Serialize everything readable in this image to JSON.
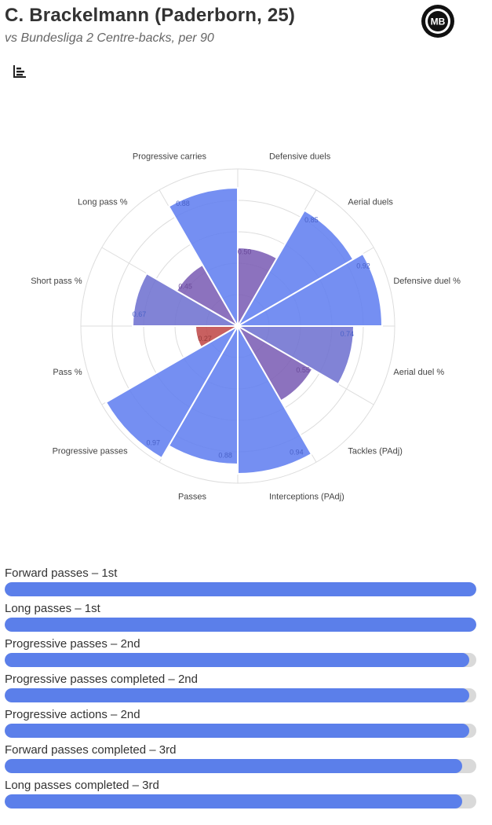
{
  "header": {
    "title": "C. Brackelmann (Paderborn, 25)",
    "subtitle": "vs Bundesliga 2 Centre-backs, per 90",
    "logo_text": "MB"
  },
  "toolbar": {
    "chart_toggle_icon": "bar-chart-icon"
  },
  "colors": {
    "high": "#6280f0",
    "mid": "#7c5fb5",
    "low": "#c04a4a",
    "grid": "#dddddd",
    "bar_fill": "#5b7fea",
    "bar_track": "#d9d9d9"
  },
  "chart_data": [
    {
      "type": "polar-bar",
      "categories": [
        "Defensive duels",
        "Aerial duels",
        "Defensive duel %",
        "Aerial duel %",
        "Tackles (PAdj)",
        "Interceptions (PAdj)",
        "Passes",
        "Progressive passes",
        "Pass %",
        "Short pass %",
        "Long pass %",
        "Progressive carries"
      ],
      "values": [
        0.5,
        0.85,
        0.92,
        0.74,
        0.55,
        0.94,
        0.88,
        0.97,
        0.27,
        0.67,
        0.45,
        0.88
      ],
      "value_labels": [
        "0.50",
        "0.85",
        "0.92",
        "0.74",
        "0.55",
        "0.94",
        "0.88",
        "0.97",
        "0.27",
        "0.67",
        "0.45",
        "0.88"
      ],
      "rlim": [
        0,
        1
      ],
      "grid": true
    },
    {
      "type": "bar",
      "orientation": "horizontal",
      "categories": [
        "Forward passes – 1st",
        "Long passes – 1st",
        "Progressive passes – 2nd",
        "Progressive passes completed – 2nd",
        "Progressive actions – 2nd",
        "Forward passes completed – 3rd",
        "Long passes completed – 3rd"
      ],
      "values": [
        1.0,
        1.0,
        0.985,
        0.985,
        0.985,
        0.97,
        0.97
      ],
      "xlim": [
        0,
        1
      ]
    }
  ]
}
